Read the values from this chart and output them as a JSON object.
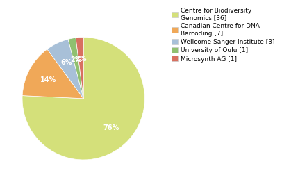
{
  "labels": [
    "Centre for Biodiversity\nGenomics [36]",
    "Canadian Centre for DNA\nBarcoding [7]",
    "Wellcome Sanger Institute [3]",
    "University of Oulu [1]",
    "Microsynth AG [1]"
  ],
  "values": [
    75,
    14,
    6,
    2,
    2
  ],
  "colors": [
    "#d4e07a",
    "#f0a858",
    "#a8c0d8",
    "#90c070",
    "#d87060"
  ],
  "startangle": 90,
  "background_color": "#ffffff",
  "text_color": "#ffffff",
  "label_fontsize": 6.5,
  "pct_fontsize": 7.0
}
